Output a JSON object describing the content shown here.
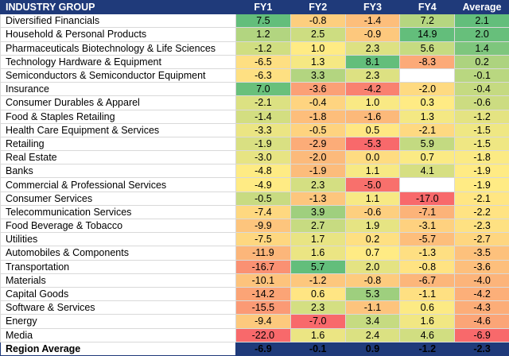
{
  "header": {
    "group_label": "INDUSTRY GROUP",
    "columns": [
      "FY1",
      "FY2",
      "FY3",
      "FY4",
      "Average"
    ]
  },
  "colors": {
    "header_bg": "#1f3a7a",
    "header_text": "#ffffff",
    "scale_low": "#f8696b",
    "scale_mid": "#ffeb84",
    "scale_high": "#63be7b",
    "blank_cell": "#ffffff"
  },
  "rows": [
    {
      "name": "Diversified Financials",
      "values": [
        "7.5",
        "-0.8",
        "-1.4",
        "7.2",
        "2.1"
      ]
    },
    {
      "name": "Household & Personal Products",
      "values": [
        "1.2",
        "2.5",
        "-0.9",
        "14.9",
        "2.0"
      ]
    },
    {
      "name": "Pharmaceuticals Biotechnology & Life Sciences",
      "values": [
        "-1.2",
        "1.0",
        "2.3",
        "5.6",
        "1.4"
      ]
    },
    {
      "name": "Technology Hardware & Equipment",
      "values": [
        "-6.5",
        "1.3",
        "8.1",
        "-8.3",
        "0.2"
      ]
    },
    {
      "name": "Semiconductors & Semiconductor Equipment",
      "values": [
        "-6.3",
        "3.3",
        "2.3",
        "",
        "-0.1"
      ]
    },
    {
      "name": "Insurance",
      "values": [
        "7.0",
        "-3.6",
        "-4.2",
        "-2.0",
        "-0.4"
      ]
    },
    {
      "name": "Consumer Durables & Apparel",
      "values": [
        "-2.1",
        "-0.4",
        "1.0",
        "0.3",
        "-0.6"
      ]
    },
    {
      "name": "Food & Staples Retailing",
      "values": [
        "-1.4",
        "-1.8",
        "-1.6",
        "1.3",
        "-1.2"
      ]
    },
    {
      "name": "Health Care Equipment & Services",
      "values": [
        "-3.3",
        "-0.5",
        "0.5",
        "-2.1",
        "-1.5"
      ]
    },
    {
      "name": "Retailing",
      "values": [
        "-1.9",
        "-2.9",
        "-5.3",
        "5.9",
        "-1.5"
      ]
    },
    {
      "name": "Real Estate",
      "values": [
        "-3.0",
        "-2.0",
        "0.0",
        "0.7",
        "-1.8"
      ]
    },
    {
      "name": "Banks",
      "values": [
        "-4.8",
        "-1.9",
        "1.1",
        "4.1",
        "-1.9"
      ]
    },
    {
      "name": "Commercial & Professional Services",
      "values": [
        "-4.9",
        "2.3",
        "-5.0",
        "",
        "-1.9"
      ]
    },
    {
      "name": "Consumer Services",
      "values": [
        "-0.5",
        "-1.3",
        "1.1",
        "-17.0",
        "-2.1"
      ]
    },
    {
      "name": "Telecommunication Services",
      "values": [
        "-7.4",
        "3.9",
        "-0.6",
        "-7.1",
        "-2.2"
      ]
    },
    {
      "name": "Food Beverage & Tobacco",
      "values": [
        "-9.9",
        "2.7",
        "1.9",
        "-3.1",
        "-2.3"
      ]
    },
    {
      "name": "Utilities",
      "values": [
        "-7.5",
        "1.7",
        "0.2",
        "-5.7",
        "-2.7"
      ]
    },
    {
      "name": "Automobiles & Components",
      "values": [
        "-11.9",
        "1.6",
        "0.7",
        "-1.3",
        "-3.5"
      ]
    },
    {
      "name": "Transportation",
      "values": [
        "-16.7",
        "5.7",
        "2.0",
        "-0.8",
        "-3.6"
      ]
    },
    {
      "name": "Materials",
      "values": [
        "-10.1",
        "-1.2",
        "-0.8",
        "-6.7",
        "-4.0"
      ]
    },
    {
      "name": "Capital Goods",
      "values": [
        "-14.2",
        "0.6",
        "5.3",
        "-1.1",
        "-4.2"
      ]
    },
    {
      "name": "Software & Services",
      "values": [
        "-15.5",
        "2.3",
        "-1.1",
        "0.6",
        "-4.3"
      ]
    },
    {
      "name": "Energy",
      "values": [
        "-9.4",
        "-7.0",
        "3.4",
        "1.6",
        "-4.6"
      ]
    },
    {
      "name": "Media",
      "values": [
        "-22.0",
        "1.6",
        "2.4",
        "4.6",
        "-6.9"
      ]
    }
  ],
  "footer": {
    "label": "Region Average",
    "values": [
      "-6.9",
      "-0.1",
      "0.9",
      "-1.2",
      "-2.3"
    ]
  }
}
